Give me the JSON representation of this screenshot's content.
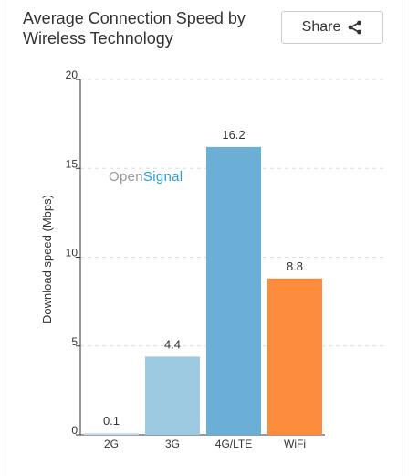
{
  "header": {
    "title": "Average Connection Speed by Wireless Technology",
    "share_label": "Share",
    "share_icon": "share-icon"
  },
  "watermark": {
    "part1": "Open",
    "part2": "Signal"
  },
  "chart_data": {
    "type": "bar",
    "title": "",
    "categories": [
      "2G",
      "3G",
      "4G/LTE",
      "WiFi"
    ],
    "values": [
      0.1,
      4.4,
      16.2,
      8.8
    ],
    "value_labels": [
      "0.1",
      "4.4",
      "16.2",
      "8.8"
    ],
    "colors": [
      "#c6dcef",
      "#9ecae1",
      "#6baed6",
      "#fd8d3c"
    ],
    "xlabel": "",
    "ylabel": "Download speed (Mbps)",
    "ylim": [
      0,
      20
    ],
    "yticks": [
      0,
      5,
      10,
      15,
      20
    ],
    "grid": true
  }
}
